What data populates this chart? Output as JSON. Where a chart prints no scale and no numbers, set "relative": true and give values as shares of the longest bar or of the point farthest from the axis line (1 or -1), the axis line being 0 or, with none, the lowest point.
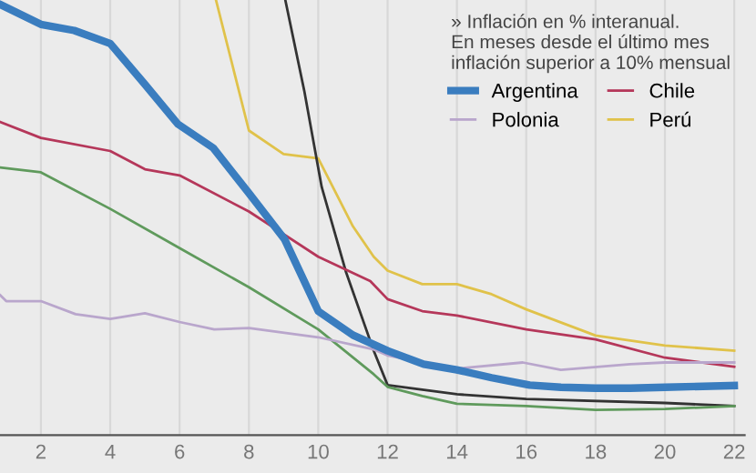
{
  "chart_data": {
    "type": "line",
    "relative": true,
    "grid": true,
    "legend": "top right",
    "legend_title": "» Inflación en % interanual.\nEn meses desde el último mes\ninflación superior a 10% mensual",
    "xlim": [
      0.82,
      22.3
    ],
    "xticks": [
      2,
      4,
      6,
      8,
      10,
      12,
      14,
      16,
      18,
      20,
      22
    ],
    "series": [
      {
        "name": "Argentina",
        "color": "#3a7dbf",
        "x": [
          0.82,
          2,
          2.96,
          4,
          5,
          5.95,
          6.97,
          8,
          9.03,
          10,
          11,
          12,
          13.04,
          14,
          15,
          16.1,
          17,
          18,
          19,
          20,
          22
        ],
        "values": [
          0.99,
          0.944,
          0.93,
          0.9,
          0.806,
          0.715,
          0.66,
          0.556,
          0.45,
          0.285,
          0.23,
          0.194,
          0.163,
          0.15,
          0.132,
          0.115,
          0.11,
          0.108,
          0.108,
          0.11,
          0.114
        ]
      },
      {
        "name": "Polonia",
        "color": "#b9a6cc",
        "x": [
          0.82,
          1,
          2,
          3,
          4,
          5,
          6,
          7,
          8,
          10,
          11.6,
          12,
          14,
          15.9,
          17,
          19,
          20,
          22
        ],
        "values": [
          0.322,
          0.308,
          0.308,
          0.278,
          0.267,
          0.28,
          0.26,
          0.243,
          0.246,
          0.225,
          0.197,
          0.183,
          0.153,
          0.167,
          0.15,
          0.163,
          0.167,
          0.167
        ]
      },
      {
        "color": "#5f9a5c",
        "x": [
          0.82,
          2,
          4,
          6,
          8,
          10,
          11.6,
          12,
          13,
          14,
          16,
          18,
          20,
          22
        ],
        "values": [
          0.615,
          0.604,
          0.52,
          0.43,
          0.34,
          0.243,
          0.14,
          0.111,
          0.09,
          0.072,
          0.067,
          0.058,
          0.06,
          0.067
        ]
      },
      {
        "name": "Chile",
        "color": "#b5375a",
        "x": [
          0.82,
          2,
          4,
          5,
          6,
          8,
          10,
          11.5,
          12,
          13,
          14,
          16,
          18,
          20,
          22
        ],
        "values": [
          0.72,
          0.683,
          0.653,
          0.611,
          0.597,
          0.514,
          0.41,
          0.354,
          0.3125,
          0.285,
          0.275,
          0.243,
          0.22,
          0.178,
          0.157
        ]
      },
      {
        "name": "Perú",
        "color": "#e0c24a",
        "x": [
          7.05,
          8,
          9,
          10,
          11,
          11.6,
          12,
          13,
          14,
          15,
          16,
          18,
          20,
          22
        ],
        "values": [
          1.0,
          0.7,
          0.646,
          0.636,
          0.48,
          0.41,
          0.378,
          0.347,
          0.347,
          0.324,
          0.289,
          0.229,
          0.206,
          0.194
        ]
      },
      {
        "color": "#333333",
        "x": [
          9.05,
          9.6,
          10.1,
          10.8,
          11.6,
          12,
          14,
          16,
          20,
          22
        ],
        "values": [
          1.0,
          0.79,
          0.57,
          0.375,
          0.194,
          0.115,
          0.094,
          0.083,
          0.074,
          0.067
        ]
      }
    ]
  }
}
